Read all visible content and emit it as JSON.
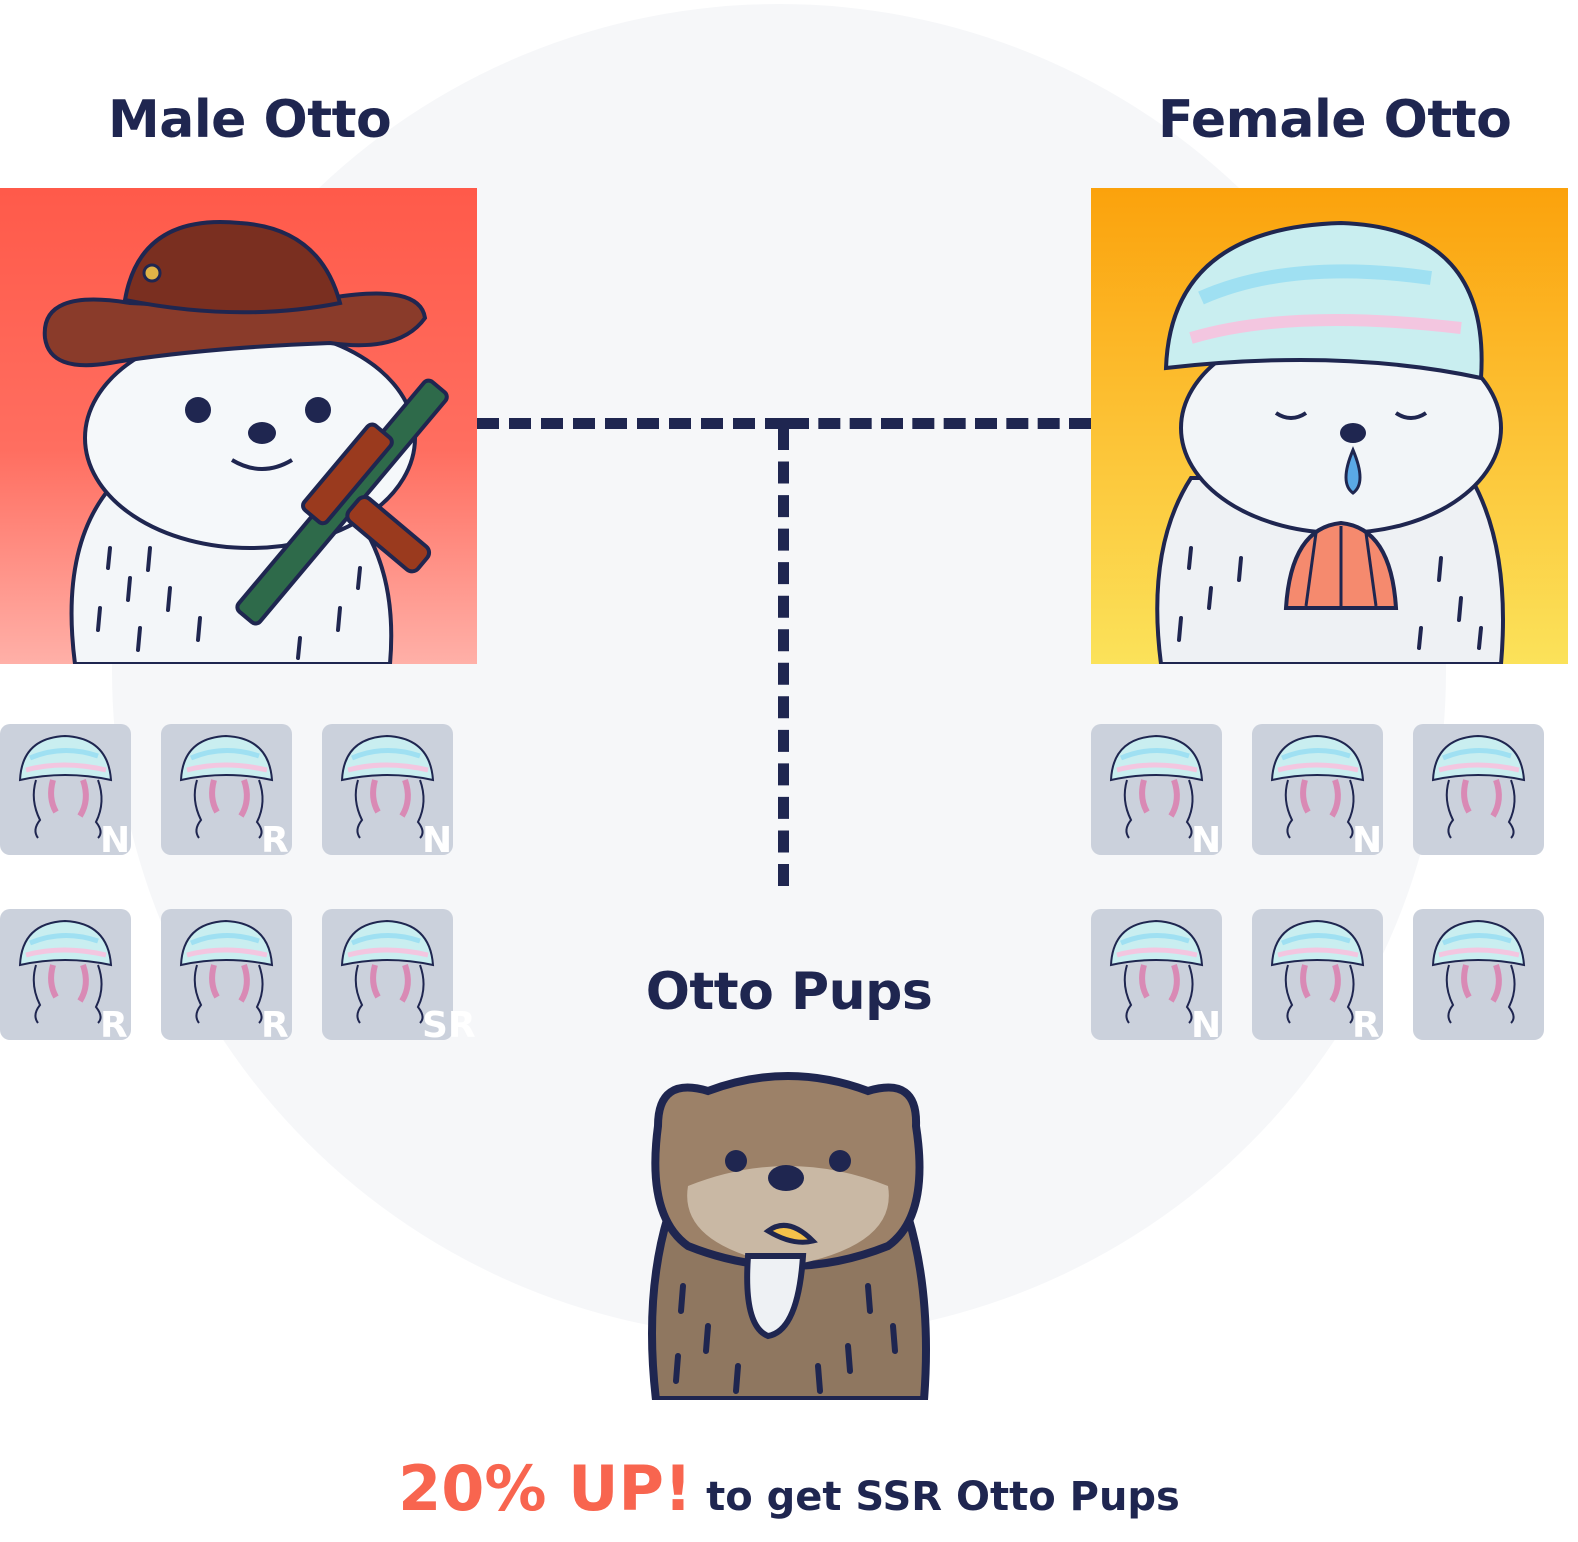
{
  "male": {
    "title": "Male Otto"
  },
  "female": {
    "title": "Female Otto"
  },
  "pups": {
    "title": "Otto Pups"
  },
  "male_tiles": [
    "N",
    "R",
    "N",
    "R",
    "R",
    "SR"
  ],
  "female_tiles": [
    "N",
    "N",
    "",
    "N",
    "R",
    ""
  ],
  "tagline": {
    "highlight": "20% UP!",
    "rest": " to get SSR Otto Pups"
  },
  "colors": {
    "navy": "#1f2650",
    "accent": "#f8654f",
    "male_bg": "#ff5a4a",
    "female_bg": "#fba20c",
    "tile_bg": "#cbd1dc"
  }
}
